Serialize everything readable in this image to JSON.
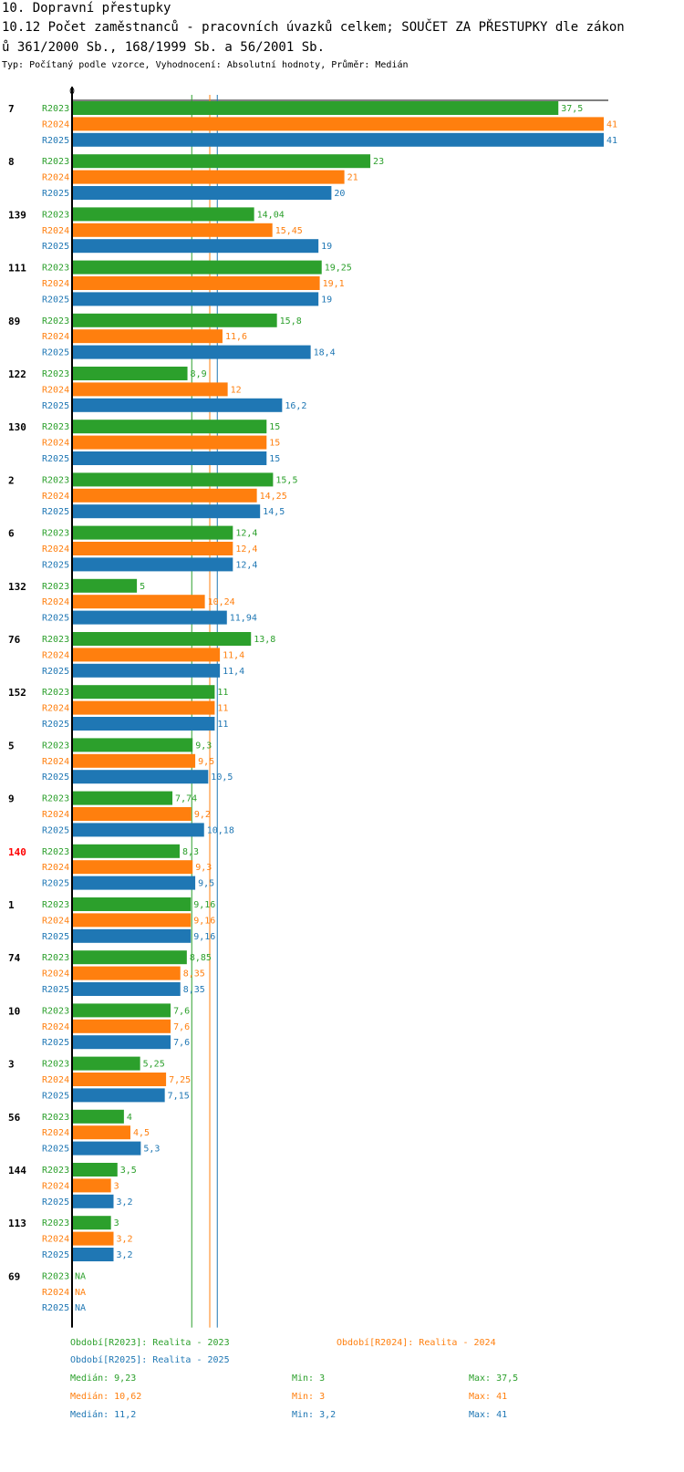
{
  "header": {
    "section": "10. Dopravní přestupky",
    "title_line1": "10.12 Počet zaměstnanců - pracovních úvazků celkem; SOUČET ZA PŘESTUPKY dle zákon",
    "title_line2": "ů 361/2000 Sb., 168/1999 Sb. a 56/2001 Sb.",
    "subtitle": "Typ: Počítaný podle vzorce, Vyhodnocení: Absolutní hodnoty, Průměr: Medián"
  },
  "colors": {
    "R2023": "#2ca02c",
    "R2024": "#ff7f0e",
    "R2025": "#1f77b4",
    "highlight": "#ff0000"
  },
  "chart_data": {
    "type": "bar",
    "orientation": "horizontal",
    "axis_zero_label": "0",
    "xlim": [
      0,
      41
    ],
    "series_names": [
      "R2023",
      "R2024",
      "R2025"
    ],
    "categories": [
      {
        "id": "7",
        "highlight": false,
        "values": [
          37.5,
          41,
          41
        ],
        "labels": [
          "37,5",
          "41",
          "41"
        ]
      },
      {
        "id": "8",
        "highlight": false,
        "values": [
          23,
          21,
          20
        ],
        "labels": [
          "23",
          "21",
          "20"
        ]
      },
      {
        "id": "139",
        "highlight": false,
        "values": [
          14.04,
          15.45,
          19
        ],
        "labels": [
          "14,04",
          "15,45",
          "19"
        ]
      },
      {
        "id": "111",
        "highlight": false,
        "values": [
          19.25,
          19.1,
          19
        ],
        "labels": [
          "19,25",
          "19,1",
          "19"
        ]
      },
      {
        "id": "89",
        "highlight": false,
        "values": [
          15.8,
          11.6,
          18.4
        ],
        "labels": [
          "15,8",
          "11,6",
          "18,4"
        ]
      },
      {
        "id": "122",
        "highlight": false,
        "values": [
          8.9,
          12,
          16.2
        ],
        "labels": [
          "8,9",
          "12",
          "16,2"
        ]
      },
      {
        "id": "130",
        "highlight": false,
        "values": [
          15,
          15,
          15
        ],
        "labels": [
          "15",
          "15",
          "15"
        ]
      },
      {
        "id": "2",
        "highlight": false,
        "values": [
          15.5,
          14.25,
          14.5
        ],
        "labels": [
          "15,5",
          "14,25",
          "14,5"
        ]
      },
      {
        "id": "6",
        "highlight": false,
        "values": [
          12.4,
          12.4,
          12.4
        ],
        "labels": [
          "12,4",
          "12,4",
          "12,4"
        ]
      },
      {
        "id": "132",
        "highlight": false,
        "values": [
          5,
          10.24,
          11.94
        ],
        "labels": [
          "5",
          "10,24",
          "11,94"
        ]
      },
      {
        "id": "76",
        "highlight": false,
        "values": [
          13.8,
          11.4,
          11.4
        ],
        "labels": [
          "13,8",
          "11,4",
          "11,4"
        ]
      },
      {
        "id": "152",
        "highlight": false,
        "values": [
          11,
          11,
          11
        ],
        "labels": [
          "11",
          "11",
          "11"
        ]
      },
      {
        "id": "5",
        "highlight": false,
        "values": [
          9.3,
          9.5,
          10.5
        ],
        "labels": [
          "9,3",
          "9,5",
          "10,5"
        ]
      },
      {
        "id": "9",
        "highlight": false,
        "values": [
          7.74,
          9.2,
          10.18
        ],
        "labels": [
          "7,74",
          "9,2",
          "10,18"
        ]
      },
      {
        "id": "140",
        "highlight": true,
        "values": [
          8.3,
          9.3,
          9.5
        ],
        "labels": [
          "8,3",
          "9,3",
          "9,5"
        ]
      },
      {
        "id": "1",
        "highlight": false,
        "values": [
          9.16,
          9.16,
          9.16
        ],
        "labels": [
          "9,16",
          "9,16",
          "9,16"
        ]
      },
      {
        "id": "74",
        "highlight": false,
        "values": [
          8.85,
          8.35,
          8.35
        ],
        "labels": [
          "8,85",
          "8,35",
          "8,35"
        ]
      },
      {
        "id": "10",
        "highlight": false,
        "values": [
          7.6,
          7.6,
          7.6
        ],
        "labels": [
          "7,6",
          "7,6",
          "7,6"
        ]
      },
      {
        "id": "3",
        "highlight": false,
        "values": [
          5.25,
          7.25,
          7.15
        ],
        "labels": [
          "5,25",
          "7,25",
          "7,15"
        ]
      },
      {
        "id": "56",
        "highlight": false,
        "values": [
          4,
          4.5,
          5.3
        ],
        "labels": [
          "4",
          "4,5",
          "5,3"
        ]
      },
      {
        "id": "144",
        "highlight": false,
        "values": [
          3.5,
          3,
          3.2
        ],
        "labels": [
          "3,5",
          "3",
          "3,2"
        ]
      },
      {
        "id": "113",
        "highlight": false,
        "values": [
          3,
          3.2,
          3.2
        ],
        "labels": [
          "3",
          "3,2",
          "3,2"
        ]
      },
      {
        "id": "69",
        "highlight": false,
        "values": [
          null,
          null,
          null
        ],
        "labels": [
          "NA",
          "NA",
          "NA"
        ]
      }
    ],
    "medians": [
      9.23,
      10.62,
      11.2
    ]
  },
  "legend": {
    "periods": [
      "Období[R2023]: Realita - 2023",
      "Období[R2024]: Realita - 2024",
      "Období[R2025]: Realita - 2025"
    ],
    "stats": [
      {
        "median": "Medián: 9,23",
        "min": "Min: 3",
        "max": "Max: 37,5"
      },
      {
        "median": "Medián: 10,62",
        "min": "Min: 3",
        "max": "Max: 41"
      },
      {
        "median": "Medián: 11,2",
        "min": "Min: 3,2",
        "max": "Max: 41"
      }
    ]
  }
}
